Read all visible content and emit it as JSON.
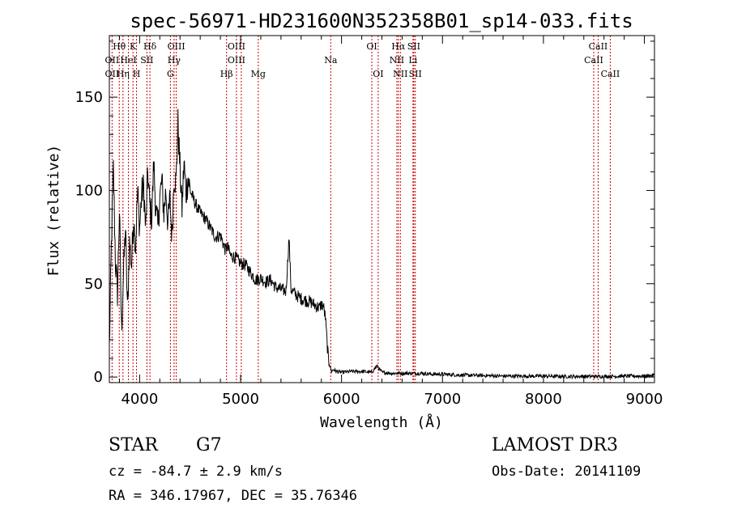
{
  "chart_data": {
    "type": "line",
    "title": "spec-56971-HD231600N352358B01_sp14-033.fits",
    "xlabel": "Wavelength (Å)",
    "ylabel": "Flux (relative)",
    "xlim": [
      3700,
      9100
    ],
    "ylim": [
      -3,
      183
    ],
    "xticks": [
      4000,
      5000,
      6000,
      7000,
      8000,
      9000
    ],
    "yticks": [
      0,
      50,
      100,
      150
    ],
    "series": [
      {
        "name": "flux",
        "x": [
          3700,
          3720,
          3740,
          3760,
          3780,
          3800,
          3820,
          3840,
          3860,
          3880,
          3900,
          3920,
          3940,
          3960,
          3980,
          4000,
          4020,
          4040,
          4060,
          4080,
          4100,
          4120,
          4140,
          4160,
          4180,
          4200,
          4220,
          4240,
          4260,
          4280,
          4300,
          4320,
          4340,
          4360,
          4380,
          4400,
          4420,
          4440,
          4460,
          4480,
          4500,
          4550,
          4600,
          4650,
          4700,
          4750,
          4800,
          4850,
          4870,
          4900,
          4950,
          5000,
          5050,
          5100,
          5150,
          5200,
          5250,
          5300,
          5350,
          5400,
          5450,
          5480,
          5500,
          5550,
          5600,
          5650,
          5700,
          5750,
          5780,
          5800,
          5820,
          5840,
          5860,
          5870,
          5880,
          5890,
          5900,
          5920,
          5950,
          6000,
          6100,
          6200,
          6300,
          6350,
          6400,
          6500,
          6600,
          6700,
          6800,
          6900,
          7000,
          7200,
          7400,
          7600,
          7800,
          8000,
          8200,
          8400,
          8600,
          8800,
          9000,
          9100
        ],
        "y": [
          15,
          70,
          112,
          62,
          45,
          90,
          25,
          55,
          80,
          35,
          72,
          60,
          85,
          70,
          100,
          80,
          98,
          102,
          78,
          110,
          92,
          85,
          115,
          90,
          80,
          96,
          105,
          88,
          100,
          82,
          95,
          75,
          108,
          104,
          136,
          112,
          90,
          115,
          98,
          107,
          100,
          93,
          88,
          85,
          80,
          75,
          76,
          68,
          70,
          65,
          64,
          61,
          60,
          56,
          52,
          53,
          51,
          52,
          48,
          47,
          46,
          75,
          47,
          44,
          42,
          41,
          40,
          38,
          37,
          39,
          38,
          32,
          16,
          10,
          7,
          5,
          3,
          4,
          3,
          2.5,
          3,
          3,
          2.5,
          6,
          2.5,
          2,
          2,
          2,
          2,
          1.5,
          1.5,
          1,
          0.8,
          0.5,
          0.5,
          0.5,
          0.3,
          0.3,
          0.3,
          0.5,
          0.5,
          1
        ]
      }
    ],
    "line_labels": [
      {
        "label": "Hθ",
        "wavelength": 3798,
        "row": 1
      },
      {
        "label": "OII",
        "wavelength": 3727,
        "row": 2
      },
      {
        "label": "OII",
        "wavelength": 3727,
        "row": 3
      },
      {
        "label": "Hη",
        "wavelength": 3835,
        "row": 3
      },
      {
        "label": "K",
        "wavelength": 3934,
        "row": 1
      },
      {
        "label": "HeI",
        "wavelength": 3889,
        "row": 2
      },
      {
        "label": "H",
        "wavelength": 3969,
        "row": 3
      },
      {
        "label": "SII",
        "wavelength": 4072,
        "row": 2
      },
      {
        "label": "Hδ",
        "wavelength": 4102,
        "row": 1
      },
      {
        "label": "OIII",
        "wavelength": 4363,
        "row": 1
      },
      {
        "label": "Hγ",
        "wavelength": 4341,
        "row": 2
      },
      {
        "label": "G",
        "wavelength": 4305,
        "row": 3
      },
      {
        "label": "Hβ",
        "wavelength": 4861,
        "row": 3
      },
      {
        "label": "OIII",
        "wavelength": 4959,
        "row": 1
      },
      {
        "label": "OIII",
        "wavelength": 4959,
        "row": 2
      },
      {
        "label": "Mg",
        "wavelength": 5175,
        "row": 3
      },
      {
        "label": "Na",
        "wavelength": 5893,
        "row": 2
      },
      {
        "label": "OI",
        "wavelength": 6300,
        "row": 1
      },
      {
        "label": "OI",
        "wavelength": 6363,
        "row": 3
      },
      {
        "label": "Hα",
        "wavelength": 6563,
        "row": 1
      },
      {
        "label": "SII",
        "wavelength": 6716,
        "row": 1
      },
      {
        "label": "NII",
        "wavelength": 6548,
        "row": 2
      },
      {
        "label": "Li",
        "wavelength": 6708,
        "row": 2
      },
      {
        "label": "NII",
        "wavelength": 6583,
        "row": 3
      },
      {
        "label": "SII",
        "wavelength": 6731,
        "row": 3
      },
      {
        "label": "CaII",
        "wavelength": 8542,
        "row": 1
      },
      {
        "label": "CaII",
        "wavelength": 8498,
        "row": 2
      },
      {
        "label": "CaII",
        "wavelength": 8662,
        "row": 3
      }
    ],
    "line_markers": [
      3727,
      3798,
      3835,
      3889,
      3934,
      3969,
      4072,
      4102,
      4305,
      4341,
      4363,
      4861,
      4959,
      5007,
      5175,
      5893,
      6300,
      6363,
      6548,
      6563,
      6583,
      6708,
      6716,
      6731,
      8498,
      8542,
      8662
    ],
    "marker_color": "#cc0000"
  },
  "info": {
    "object_class": "STAR",
    "subclass": "G7",
    "survey": "LAMOST DR3",
    "cz": "cz = -84.7 ± 2.9 km/s",
    "obs_date": "Obs-Date: 20141109",
    "radec": "RA = 346.17967, DEC =  35.76346"
  }
}
